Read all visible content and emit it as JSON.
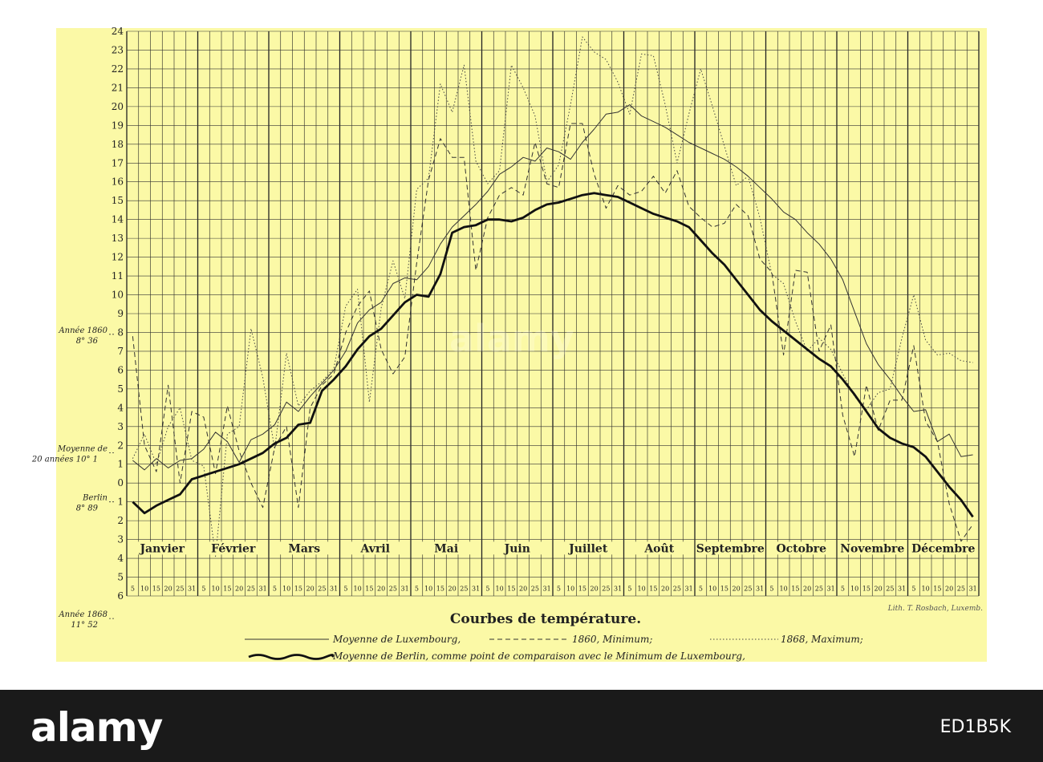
{
  "brand": "alamy",
  "stock_id": "ED1B5K",
  "watermark": "alamy",
  "chart_data": {
    "type": "line",
    "title": "Courbes de température.",
    "credit": "Lith. T. Rosbach, Luxemb.",
    "xlim": [
      0,
      72
    ],
    "ylim": [
      -6,
      24
    ],
    "months": [
      "Janvier",
      "Février",
      "Mars",
      "Avril",
      "Mai",
      "Juin",
      "Juillet",
      "Août",
      "Septembre",
      "Octobre",
      "Novembre",
      "Décembre"
    ],
    "day_ticks": [
      "5",
      "10",
      "15",
      "20",
      "25",
      "31"
    ],
    "y_ticks": [
      {
        "value": 24,
        "label": "24"
      },
      {
        "value": 23,
        "label": "23"
      },
      {
        "value": 22,
        "label": "22"
      },
      {
        "value": 21,
        "label": "21"
      },
      {
        "value": 20,
        "label": "20"
      },
      {
        "value": 19,
        "label": "19"
      },
      {
        "value": 18,
        "label": "18"
      },
      {
        "value": 17,
        "label": "17"
      },
      {
        "value": 16,
        "label": "16"
      },
      {
        "value": 15,
        "label": "15"
      },
      {
        "value": 14,
        "label": "14"
      },
      {
        "value": 13,
        "label": "13"
      },
      {
        "value": 12,
        "label": "12"
      },
      {
        "value": 11,
        "label": "11"
      },
      {
        "value": 10,
        "label": "10"
      },
      {
        "value": 9,
        "label": "9"
      },
      {
        "value": 8,
        "label": "8"
      },
      {
        "value": 7,
        "label": "7"
      },
      {
        "value": 6,
        "label": "6"
      },
      {
        "value": 5,
        "label": "5"
      },
      {
        "value": 4,
        "label": "4"
      },
      {
        "value": 3,
        "label": "3"
      },
      {
        "value": 2,
        "label": "2"
      },
      {
        "value": 1,
        "label": "1"
      },
      {
        "value": 0,
        "label": "0"
      },
      {
        "value": -1,
        "label": "1"
      },
      {
        "value": -2,
        "label": "2"
      },
      {
        "value": -3,
        "label": "3"
      },
      {
        "value": -4,
        "label": "4"
      },
      {
        "value": -5,
        "label": "5"
      },
      {
        "value": -6,
        "label": "6"
      }
    ],
    "annotations": [
      {
        "line1": "Année 1860",
        "line2": "8° 36",
        "y": 7.9
      },
      {
        "line1": "Moyenne de",
        "line2": "20 années 10° 1",
        "y": 1.6
      },
      {
        "line1": "Berlin",
        "line2": "8° 89",
        "y": -1.0
      },
      {
        "line1": "Année 1868",
        "line2": "11° 52",
        "y": -7.2
      }
    ],
    "legend": [
      {
        "label": "Moyenne de Luxembourg,",
        "style": "thin"
      },
      {
        "label": "1860, Minimum;",
        "style": "dashed"
      },
      {
        "label": "1868, Maximum;",
        "style": "dotted"
      },
      {
        "label": "Moyenne de Berlin, comme point de comparaison avec le Minimum de Luxembourg,",
        "style": "thick"
      }
    ],
    "series": [
      {
        "style": "thin",
        "values": [
          1.2,
          0.7,
          1.3,
          0.8,
          1.2,
          1.3,
          1.8,
          2.7,
          2.2,
          1.1,
          2.3,
          2.6,
          3.1,
          4.3,
          3.8,
          4.6,
          5.3,
          6.0,
          7.0,
          8.5,
          9.2,
          9.6,
          10.6,
          10.9,
          10.8,
          11.5,
          12.7,
          13.6,
          14.2,
          14.8,
          15.5,
          16.4,
          16.8,
          17.3,
          17.1,
          17.8,
          17.6,
          17.2,
          18.1,
          18.8,
          19.6,
          19.7,
          20.1,
          19.5,
          19.2,
          18.9,
          18.5,
          18.1,
          17.8,
          17.5,
          17.2,
          16.8,
          16.3,
          15.7,
          15.1,
          14.4,
          14.0,
          13.3,
          12.7,
          11.9,
          10.8,
          9.1,
          7.4,
          6.3,
          5.5,
          4.6,
          3.8,
          3.9,
          2.2,
          2.6,
          1.4,
          1.5
        ]
      },
      {
        "style": "dashed",
        "values": [
          7.8,
          2.0,
          0.6,
          5.2,
          0.0,
          3.8,
          3.5,
          0.5,
          4.1,
          1.7,
          0.0,
          -1.3,
          1.9,
          3.0,
          -1.3,
          4.0,
          5.2,
          5.8,
          8.0,
          9.4,
          10.2,
          7.1,
          5.8,
          6.7,
          11.7,
          16.1,
          18.3,
          17.3,
          17.3,
          11.3,
          14.1,
          15.3,
          15.7,
          15.3,
          18.1,
          15.9,
          15.7,
          19.1,
          19.1,
          16.4,
          14.6,
          15.8,
          15.3,
          15.5,
          16.3,
          15.4,
          16.6,
          14.7,
          14.1,
          13.6,
          13.8,
          14.8,
          14.2,
          11.9,
          11.2,
          6.8,
          11.3,
          11.2,
          7.0,
          8.4,
          3.6,
          1.4,
          5.2,
          2.8,
          4.4,
          4.4,
          7.3,
          3.3,
          2.2,
          -1.1,
          -3.1,
          -2.2
        ]
      },
      {
        "style": "dotted",
        "values": [
          1.3,
          2.6,
          1.0,
          3.0,
          4.0,
          1.2,
          0.9,
          -3.9,
          2.6,
          3.0,
          8.2,
          5.6,
          1.8,
          6.9,
          4.1,
          4.9,
          5.4,
          6.1,
          9.4,
          10.3,
          4.3,
          9.3,
          11.8,
          9.8,
          15.6,
          16.2,
          21.2,
          19.7,
          22.2,
          17.1,
          15.9,
          16.6,
          22.2,
          21.0,
          19.5,
          16.0,
          16.9,
          20.1,
          23.7,
          22.9,
          22.5,
          21.3,
          19.6,
          22.8,
          22.7,
          20.1,
          17.0,
          19.6,
          22.0,
          20.0,
          17.9,
          15.8,
          16.3,
          14.1,
          11.1,
          10.6,
          8.6,
          7.0,
          7.7,
          7.1,
          5.8,
          4.6,
          3.9,
          4.8,
          5.0,
          7.7,
          10.0,
          7.6,
          6.8,
          6.9,
          6.5,
          6.4
        ]
      },
      {
        "style": "thick",
        "values": [
          -1.0,
          -1.6,
          -1.2,
          -0.9,
          -0.6,
          0.2,
          0.4,
          0.6,
          0.8,
          1.0,
          1.3,
          1.6,
          2.1,
          2.4,
          3.1,
          3.2,
          4.9,
          5.5,
          6.2,
          7.1,
          7.8,
          8.2,
          8.9,
          9.6,
          10.0,
          9.9,
          11.1,
          13.3,
          13.6,
          13.7,
          14.0,
          14.0,
          13.9,
          14.1,
          14.5,
          14.8,
          14.9,
          15.1,
          15.3,
          15.4,
          15.3,
          15.2,
          14.9,
          14.6,
          14.3,
          14.1,
          13.9,
          13.6,
          12.9,
          12.2,
          11.6,
          10.8,
          10.0,
          9.2,
          8.6,
          8.1,
          7.6,
          7.1,
          6.6,
          6.2,
          5.5,
          4.7,
          3.8,
          2.9,
          2.4,
          2.1,
          1.9,
          1.4,
          0.6,
          -0.2,
          -0.9,
          -1.8
        ]
      }
    ]
  }
}
